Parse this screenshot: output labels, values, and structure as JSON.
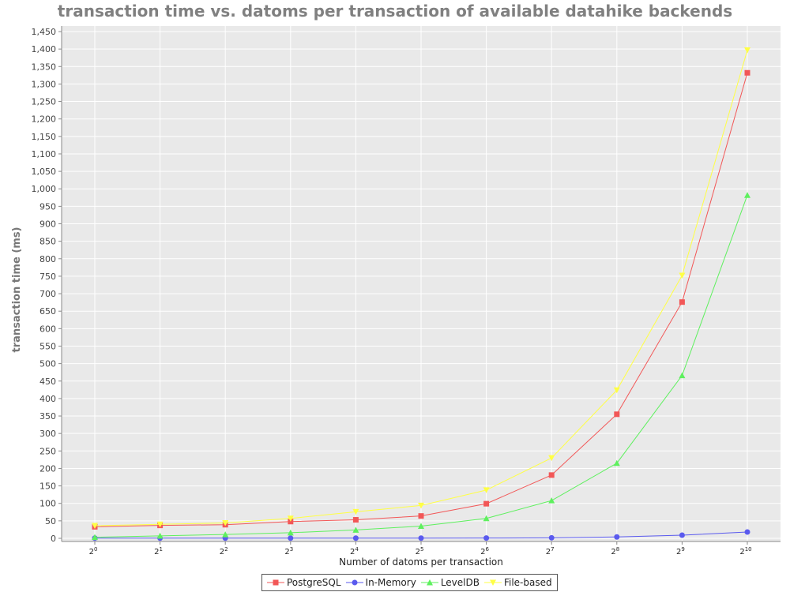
{
  "chart_data": {
    "type": "line",
    "title": "transaction time vs. datoms per transaction of available datahike backends",
    "xlabel": "Number of datoms per transaction",
    "ylabel": "transaction time (ms)",
    "x_ticks": [
      "2",
      "2",
      "2",
      "2",
      "2",
      "2",
      "2",
      "2",
      "2",
      "2",
      "2"
    ],
    "x_exponents": [
      "0",
      "1",
      "2",
      "3",
      "4",
      "5",
      "6",
      "7",
      "8",
      "9",
      "10"
    ],
    "x": [
      1,
      2,
      4,
      8,
      16,
      32,
      64,
      128,
      256,
      512,
      1024
    ],
    "x_scale": "log2",
    "ylim": [
      0,
      1460
    ],
    "y_ticks": [
      "0",
      "50",
      "100",
      "150",
      "200",
      "250",
      "300",
      "350",
      "400",
      "450",
      "500",
      "550",
      "600",
      "650",
      "700",
      "750",
      "800",
      "850",
      "900",
      "950",
      "1,000",
      "1,050",
      "1,100",
      "1,150",
      "1,200",
      "1,250",
      "1,300",
      "1,350",
      "1,400",
      "1,450"
    ],
    "y_tick_values": [
      0,
      50,
      100,
      150,
      200,
      250,
      300,
      350,
      400,
      450,
      500,
      550,
      600,
      650,
      700,
      750,
      800,
      850,
      900,
      950,
      1000,
      1050,
      1100,
      1150,
      1200,
      1250,
      1300,
      1350,
      1400,
      1450
    ],
    "grid": true,
    "legend_position": "bottom",
    "series": [
      {
        "name": "PostgreSQL",
        "color": "#f25757",
        "marker": "square",
        "values": [
          33,
          37,
          39,
          48,
          53,
          64,
          99,
          181,
          355,
          676,
          1332
        ]
      },
      {
        "name": "In-Memory",
        "color": "#5a5aee",
        "marker": "circle",
        "values": [
          0.5,
          0.5,
          0.5,
          0.5,
          0.5,
          0.5,
          0.8,
          1.5,
          4,
          9,
          18
        ]
      },
      {
        "name": "LevelDB",
        "color": "#5ef05e",
        "marker": "triangle",
        "values": [
          3,
          7,
          11,
          16,
          24,
          35,
          57,
          108,
          215,
          466,
          982
        ]
      },
      {
        "name": "File-based",
        "color": "#ffff44",
        "marker": "triangle-down",
        "values": [
          36,
          40,
          44,
          57,
          76,
          94,
          138,
          230,
          424,
          752,
          1397
        ]
      }
    ]
  }
}
